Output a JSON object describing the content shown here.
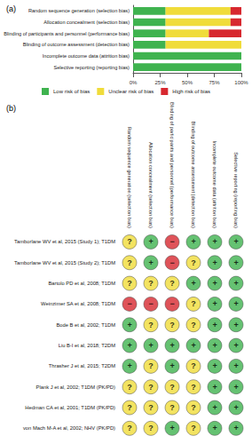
{
  "chart_data": {
    "type": "bar",
    "title": "(a)",
    "orientation": "horizontal",
    "stacked": true,
    "grid": false,
    "legend": "bottom",
    "categories": [
      "Random sequence generation (selection bias)",
      "Allocation concealment (selection bias)",
      "Blinding of participants and personnel (performance bias)",
      "Blinding of outcome assessment (detection bias)",
      "Incomplete outcome data (attrition bias)",
      "Selective reporting (reporting bias)"
    ],
    "series": [
      {
        "name": "Low risk of bias",
        "color": "#3fb34f",
        "values": [
          30,
          30,
          30,
          30,
          100,
          100
        ]
      },
      {
        "name": "Unclear risk of bias",
        "color": "#f0dc3a",
        "values": [
          60,
          60,
          40,
          70,
          0,
          0
        ]
      },
      {
        "name": "High risk of bias",
        "color": "#d7282f",
        "values": [
          10,
          10,
          30,
          0,
          0,
          0
        ]
      }
    ],
    "xlim": [
      0,
      100
    ],
    "xticks": [
      {
        "value": 0,
        "label": "0%"
      },
      {
        "value": 25,
        "label": "25%"
      },
      {
        "value": 50,
        "label": "50%"
      },
      {
        "value": 75,
        "label": "75%"
      },
      {
        "value": 100,
        "label": "100%"
      }
    ]
  },
  "table": {
    "title": "(b)",
    "columns": [
      "Random sequence generation (selection bias)",
      "Allocation concealment (selection bias)",
      "Blinding of participants and personnel (performance bias)",
      "Blinding of outcome assessment (detection bias)",
      "Incomplete outcome data (attrition bias)",
      "Selective reporting (reporting bias)"
    ],
    "symbol_colors": {
      "+": "#3fb34f",
      "?": "#f0dc3a",
      "−": "#d7282f"
    },
    "rows": [
      {
        "label": "Tamborlane WV et al, 2015 (Study 1); T1DM",
        "cells": [
          "?",
          "+",
          "−",
          "+",
          "+",
          "+"
        ]
      },
      {
        "label": "Tamborlane WV et al, 2015 (Study 2); T1DM",
        "cells": [
          "?",
          "+",
          "−",
          "?",
          "+",
          "+"
        ]
      },
      {
        "label": "Bartolo PD et al, 2008; T1DM",
        "cells": [
          "?",
          "?",
          "?",
          "+",
          "+",
          "+"
        ]
      },
      {
        "label": "Weinzimer SA et al, 2008; T1DM",
        "cells": [
          "−",
          "−",
          "−",
          "?",
          "+",
          "+"
        ]
      },
      {
        "label": "Bode B et al, 2002; T1DM",
        "cells": [
          "+",
          "?",
          "?",
          "?",
          "+",
          "+"
        ]
      },
      {
        "label": "Liu B-I et al, 2018; T2DM",
        "cells": [
          "+",
          "+",
          "+",
          "+",
          "+",
          "+"
        ]
      },
      {
        "label": "Thrasher J et al, 2015; T2DM",
        "cells": [
          "+",
          "?",
          "+",
          "?",
          "+",
          "+"
        ]
      },
      {
        "label": "Plank J et al, 2002; T1DM (PK/PD)",
        "cells": [
          "?",
          "?",
          "?",
          "?",
          "+",
          "+"
        ]
      },
      {
        "label": "Hedman CA et al, 2001; T1DM (PK/PD)",
        "cells": [
          "?",
          "?",
          "?",
          "?",
          "+",
          "+"
        ]
      },
      {
        "label": "von Mach M-A et al, 2002; NHV (PK/PD)",
        "cells": [
          "?",
          "?",
          "+",
          "?",
          "+",
          "+"
        ]
      }
    ]
  }
}
